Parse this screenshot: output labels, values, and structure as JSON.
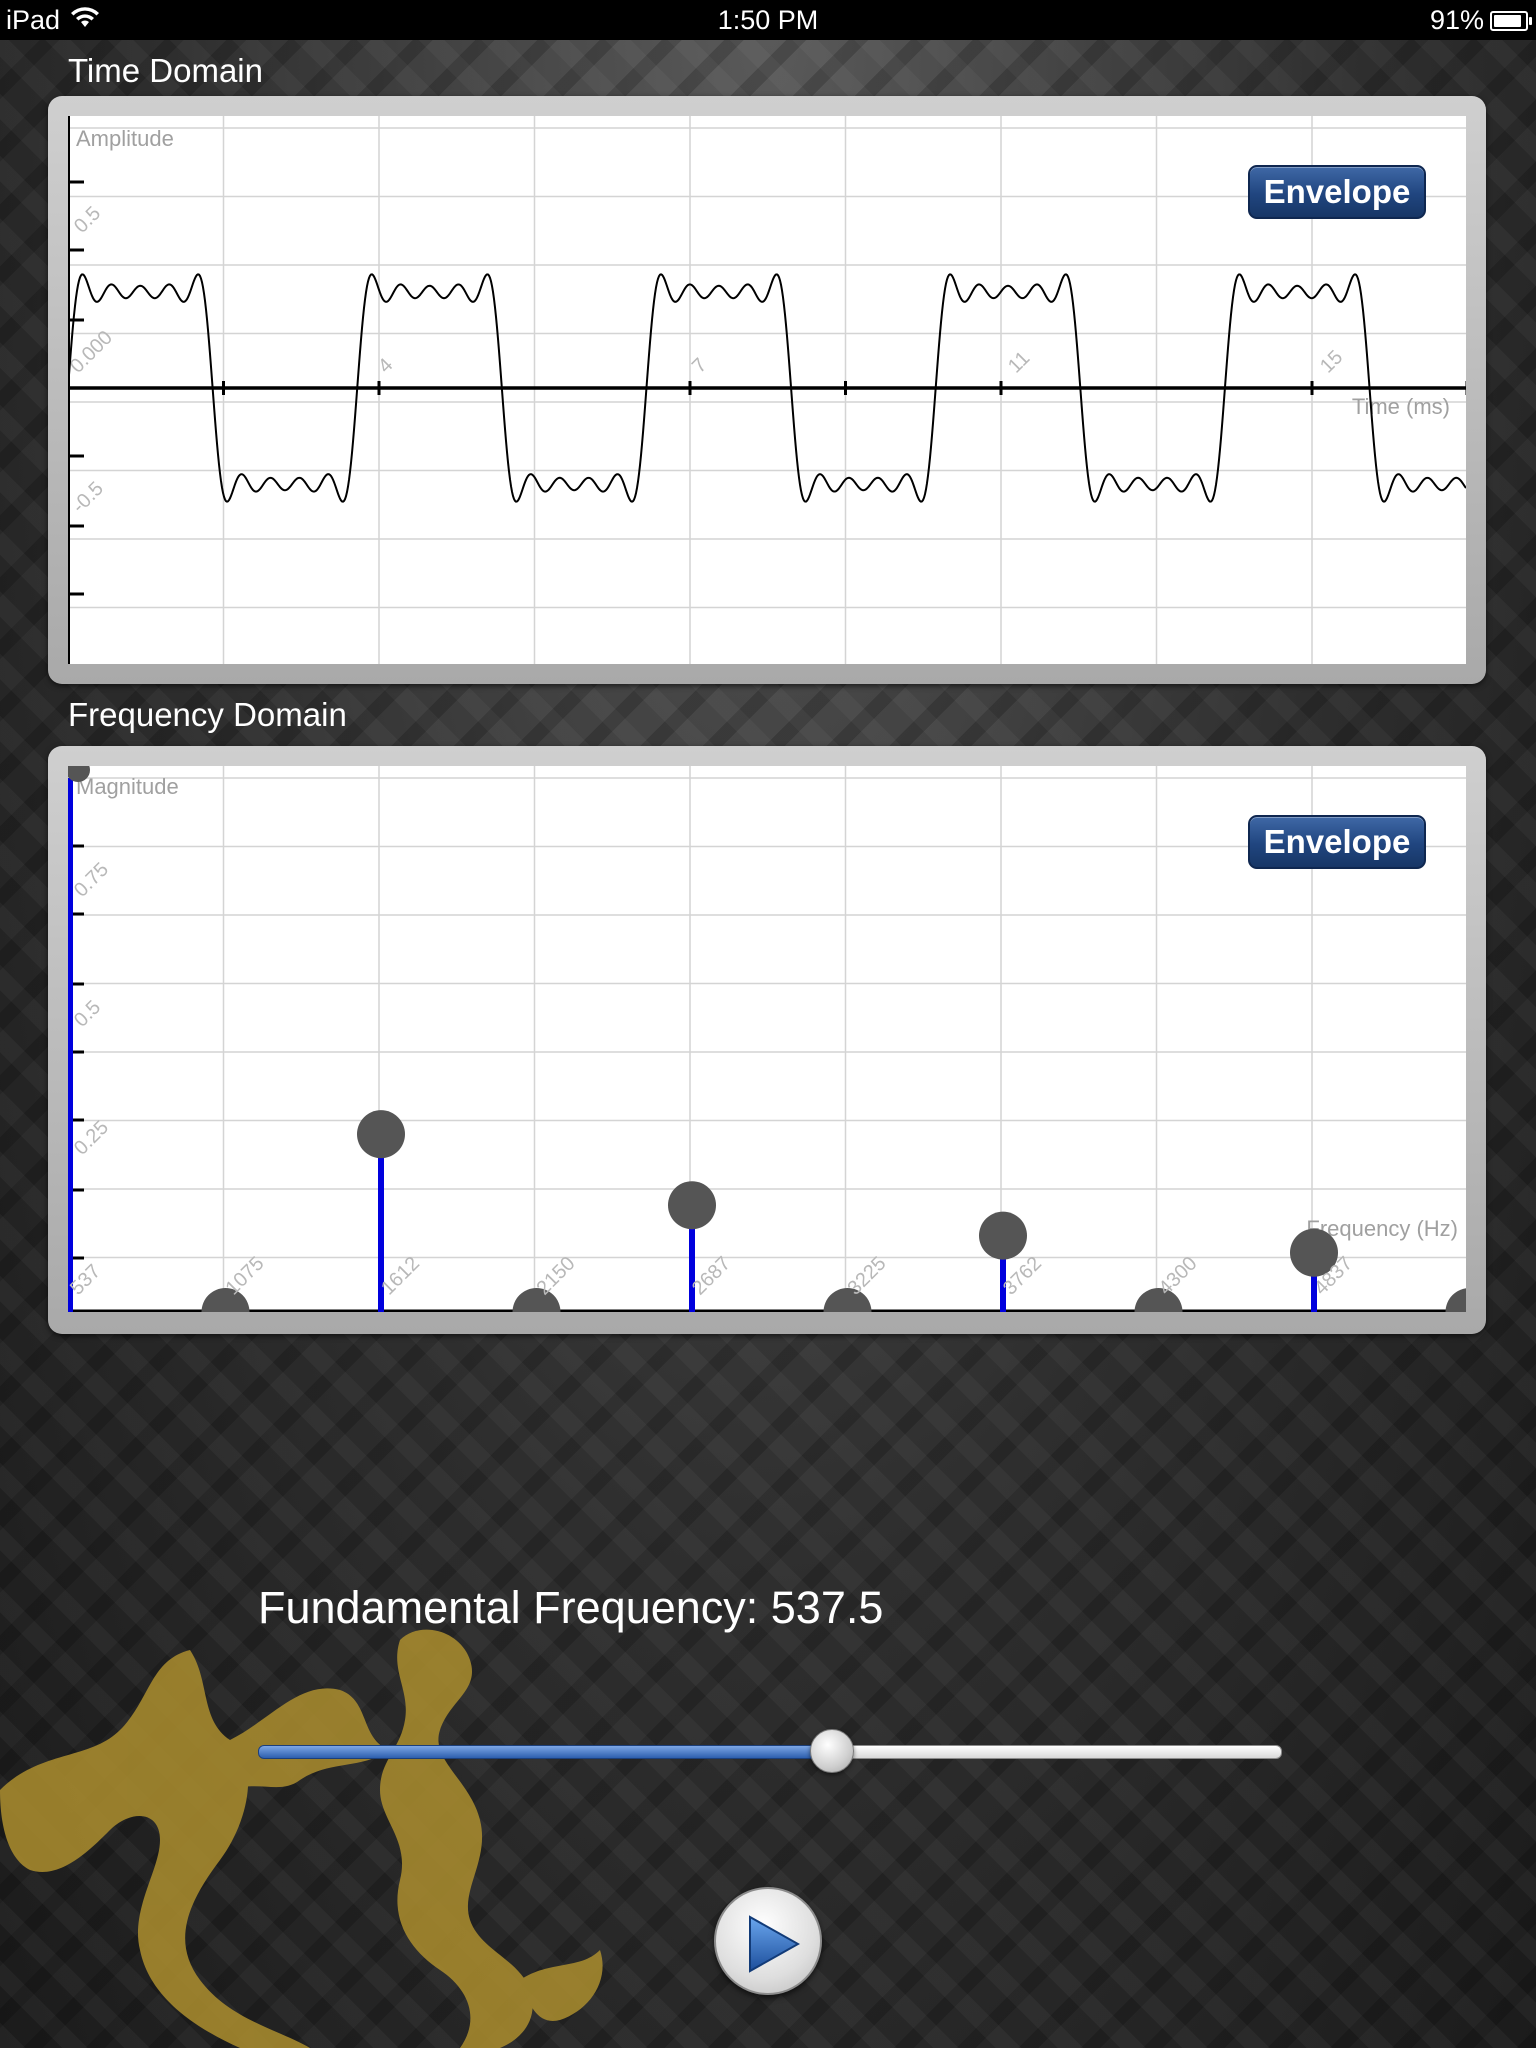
{
  "status_bar": {
    "device": "iPad",
    "time": "1:50 PM",
    "battery": "91%",
    "battery_level": 0.91
  },
  "time_domain": {
    "title": "Time Domain",
    "envelope_label": "Envelope",
    "chart_data": {
      "type": "line",
      "ylabel": "Amplitude",
      "xlabel": "Time (ms)",
      "y_tick_labels": [
        "0.5",
        "0.000",
        "-0.5"
      ],
      "x_tick_labels": [
        "4",
        "7",
        "11",
        "15"
      ],
      "series": [
        {
          "waveform": "square wave (sum of odd harmonics 1, 3, 5, 7, 9)",
          "period_ms": 1.86,
          "amplitude": 0.785
        }
      ],
      "xlim": [
        0,
        18
      ],
      "ylim": [
        -1.0,
        0.8
      ],
      "grid": true
    }
  },
  "frequency_domain": {
    "title": "Frequency Domain",
    "envelope_label": "Envelope",
    "chart_data": {
      "type": "stem",
      "ylabel": "Magnitude",
      "xlabel": "Frequency (Hz)",
      "y_tick_labels": [
        "0.75",
        "0.5",
        "0.25"
      ],
      "categories": [
        "537",
        "1075",
        "1612",
        "2150",
        "2687",
        "3225",
        "3762",
        "4300",
        "4837",
        "5375"
      ],
      "values": [
        1.0,
        0.0,
        0.333,
        0.0,
        0.2,
        0.0,
        0.143,
        0.0,
        0.111,
        0.0
      ],
      "ylim": [
        0,
        1.0
      ],
      "grid": true
    }
  },
  "controls": {
    "fundamental_label": "Fundamental Frequency: 537.5",
    "slider_value": 0.56
  }
}
